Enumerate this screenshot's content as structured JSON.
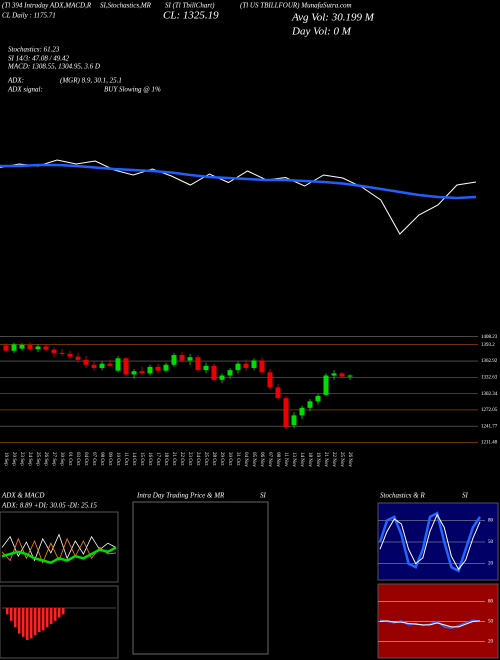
{
  "header": {
    "lines": [
      "(Tl 394 Intraday ADX,MACD,R",
      "SI,Stochastics,MR",
      "SI (Tl TbillChart)",
      "(Tl US TBILLFOUR) MunafaSutra.com"
    ],
    "daily": "CL Daily : 1175.71",
    "close": "CL: 1325.19",
    "avg_vol": "Avg Vol: 30.199 M",
    "day_vol": "Day Vol: 0  M",
    "stats": [
      "Stochastics: 61.23",
      "SI 14/3: 47.08 / 49.42",
      "MACD: 1308.55, 1304.95, 3.6  D"
    ],
    "adx_label": "ADX:",
    "adx_value": "(MGR) 8.9, 30.1, 25.1",
    "adx_signal_label": "ADX  signal:",
    "adx_signal": "BUY Slowing @ 1%"
  },
  "chart_data": [
    {
      "type": "line",
      "ylim": [
        1200,
        1420
      ],
      "series": [
        {
          "color": "#ffffff",
          "values": [
            1365,
            1372,
            1368,
            1380,
            1372,
            1378,
            1360,
            1350,
            1362,
            1348,
            1330,
            1352,
            1335,
            1358,
            1340,
            1345,
            1328,
            1350,
            1344,
            1326,
            1300,
            1232,
            1270,
            1290,
            1330,
            1336
          ]
        },
        {
          "color": "#1f5fff",
          "values": [
            1368,
            1368,
            1370,
            1370,
            1368,
            1365,
            1362,
            1360,
            1358,
            1355,
            1350,
            1346,
            1344,
            1342,
            1340,
            1340,
            1338,
            1336,
            1333,
            1328,
            1322,
            1316,
            1310,
            1306,
            1304,
            1306
          ]
        }
      ]
    },
    {
      "type": "candlestick",
      "ylim": [
        1205,
        1415
      ],
      "yticks": [
        1408.23,
        1393.2,
        1362.92,
        1332.63,
        1302.34,
        1272.05,
        1241.77,
        1211.48
      ],
      "grid": true,
      "up_color": "#00dd00",
      "down_color": "#ee0000",
      "categories": [
        "19 Sep",
        "20 Sep",
        "23 Sep",
        "24 Sep",
        "25 Sep",
        "26 Sep",
        "27 Sep",
        "30 Sep",
        "01 Oct",
        "03 Oct",
        "04 Oct",
        "07 Oct",
        "08 Oct",
        "09 Oct",
        "10 Oct",
        "11 Oct",
        "14 Oct",
        "15 Oct",
        "16 Oct",
        "17 Oct",
        "18 Oct",
        "21 Oct",
        "22 Oct",
        "23 Oct",
        "24 Oct",
        "25 Oct",
        "28 Oct",
        "29 Oct",
        "30 Oct",
        "31 Oct",
        "04 Nov",
        "05 Nov",
        "06 Nov",
        "07 Nov",
        "08 Nov",
        "11 Nov",
        "13 Nov",
        "14 Nov",
        "18 Nov",
        "19 Nov",
        "21 Nov",
        "22 Nov",
        "25 Nov",
        "26 Nov"
      ],
      "open": [
        1392,
        1382,
        1386,
        1393,
        1385,
        1390,
        1384,
        1378,
        1376,
        1371,
        1365,
        1356,
        1350,
        1358,
        1345,
        1368,
        1338,
        1344,
        1340,
        1352,
        1345,
        1356,
        1374,
        1364,
        1370,
        1346,
        1354,
        1328,
        1336,
        1346,
        1358,
        1350,
        1364,
        1342,
        1314,
        1294,
        1244,
        1262,
        1276,
        1288,
        1300,
        1336,
        1340,
        1334
      ],
      "high": [
        1396,
        1397,
        1396,
        1397,
        1394,
        1395,
        1388,
        1385,
        1382,
        1378,
        1372,
        1362,
        1362,
        1366,
        1372,
        1370,
        1348,
        1352,
        1356,
        1358,
        1360,
        1378,
        1380,
        1376,
        1374,
        1360,
        1358,
        1340,
        1350,
        1362,
        1366,
        1368,
        1370,
        1348,
        1320,
        1298,
        1268,
        1280,
        1292,
        1302,
        1340,
        1346,
        1342,
        1338
      ],
      "low": [
        1380,
        1378,
        1383,
        1382,
        1380,
        1381,
        1370,
        1372,
        1368,
        1360,
        1350,
        1345,
        1346,
        1352,
        1342,
        1335,
        1330,
        1338,
        1336,
        1340,
        1342,
        1352,
        1360,
        1355,
        1342,
        1340,
        1325,
        1322,
        1330,
        1340,
        1345,
        1346,
        1340,
        1310,
        1290,
        1236,
        1238,
        1255,
        1270,
        1282,
        1298,
        1328,
        1332,
        1328
      ],
      "close": [
        1382,
        1394,
        1393,
        1385,
        1390,
        1384,
        1378,
        1376,
        1371,
        1365,
        1356,
        1350,
        1358,
        1354,
        1368,
        1338,
        1344,
        1340,
        1352,
        1345,
        1356,
        1374,
        1364,
        1370,
        1346,
        1354,
        1328,
        1336,
        1346,
        1358,
        1350,
        1364,
        1342,
        1314,
        1294,
        1240,
        1262,
        1276,
        1288,
        1298,
        1336,
        1340,
        1334,
        1336
      ]
    },
    {
      "type": "line",
      "title": "ADX  & MACD",
      "subtitle": "ADX: 8.89  +DI: 30.05  -DI: 25.15",
      "ylim": [
        0,
        60
      ],
      "series": [
        {
          "color": "#ffffff",
          "values": [
            30,
            40,
            22,
            35,
            18,
            38,
            25,
            42,
            20,
            36,
            24,
            40,
            28,
            34,
            30
          ]
        },
        {
          "color": "#ff8800",
          "values": [
            26,
            18,
            38,
            20,
            36,
            16,
            34,
            18,
            38,
            22,
            36,
            20,
            30,
            24,
            25
          ]
        },
        {
          "color": "#00dd00",
          "values": [
            22,
            24,
            26,
            24,
            20,
            18,
            16,
            20,
            18,
            22,
            20,
            24,
            28,
            26,
            30
          ]
        }
      ]
    },
    {
      "type": "bar",
      "ylim": [
        -30,
        10
      ],
      "color": "#ff2222",
      "values": [
        -4,
        -8,
        -12,
        -16,
        -18,
        -20,
        -19,
        -17,
        -15,
        -14,
        -12,
        -10,
        -8,
        -6,
        -4
      ]
    },
    {
      "type": "empty",
      "title": "Intra Day Trading Price  & MR",
      "subtitle": "SI"
    },
    {
      "type": "line",
      "title": "Stochastics & R",
      "subtitle": "SI",
      "ylim": [
        0,
        100
      ],
      "yticks": [
        20,
        50,
        80
      ],
      "series": [
        {
          "color": "#2266ff",
          "values": [
            50,
            80,
            85,
            60,
            20,
            15,
            40,
            85,
            90,
            50,
            15,
            10,
            40,
            70,
            85
          ]
        },
        {
          "color": "#ffffff",
          "values": [
            40,
            65,
            82,
            75,
            40,
            20,
            28,
            65,
            88,
            70,
            30,
            12,
            25,
            55,
            78
          ]
        }
      ]
    },
    {
      "type": "line",
      "ylim": [
        0,
        100
      ],
      "yticks": [
        20,
        50,
        80
      ],
      "series": [
        {
          "color": "#2266ff",
          "values": [
            52,
            50,
            48,
            51,
            45,
            47,
            44,
            46,
            50,
            42,
            40,
            44,
            48,
            52,
            50
          ]
        },
        {
          "color": "#ffffff",
          "values": [
            50,
            51,
            49,
            49,
            47,
            46,
            45,
            45,
            48,
            45,
            42,
            42,
            46,
            50,
            51
          ]
        }
      ]
    }
  ]
}
